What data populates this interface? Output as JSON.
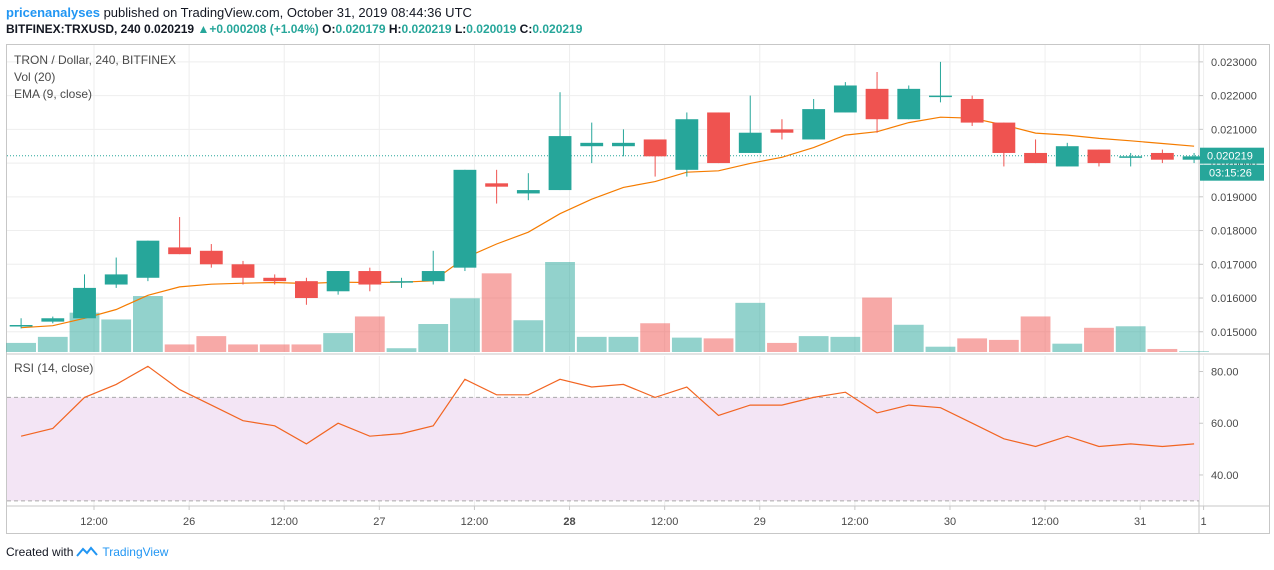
{
  "header": {
    "author": "pricenanalyses",
    "published_text": "published on TradingView.com, October 31, 2019 08:44:36 UTC",
    "symbol": "BITFINEX:TRXUSD, 240",
    "last_price": "0.020219",
    "change": "+0.000208 (+1.04%)",
    "o_label": "O:",
    "o_value": "0.020179",
    "h_label": "H:",
    "h_value": "0.020219",
    "l_label": "L:",
    "l_value": "0.020019",
    "c_label": "C:",
    "c_value": "0.020219"
  },
  "legend": {
    "title": "TRON / Dollar, 240, BITFINEX",
    "vol": "Vol (20)",
    "ema": "EMA (9, close)",
    "rsi": "RSI (14, close)"
  },
  "price_axis": {
    "ticks": [
      "0.023000",
      "0.022000",
      "0.021000",
      "0.020000",
      "0.019000",
      "0.018000",
      "0.017000",
      "0.016000",
      "0.015000"
    ],
    "current_price": "0.020219",
    "countdown": "03:15:26"
  },
  "rsi_axis": {
    "ticks": [
      "80.00",
      "60.00",
      "40.00"
    ]
  },
  "time_axis": {
    "labels": [
      {
        "text": "12:00",
        "i": 2.3
      },
      {
        "text": "26",
        "i": 5.3
      },
      {
        "text": "12:00",
        "i": 8.3
      },
      {
        "text": "27",
        "i": 11.3
      },
      {
        "text": "12:00",
        "i": 14.3
      },
      {
        "text": "28",
        "i": 17.3,
        "bold": true
      },
      {
        "text": "12:00",
        "i": 20.3
      },
      {
        "text": "29",
        "i": 23.3
      },
      {
        "text": "12:00",
        "i": 26.3
      },
      {
        "text": "30",
        "i": 29.3
      },
      {
        "text": "12:00",
        "i": 32.3
      },
      {
        "text": "31",
        "i": 35.3
      },
      {
        "text": "1",
        "i": 37.3
      }
    ]
  },
  "footer": {
    "created_with": "Created with",
    "brand": "TradingView"
  },
  "colors": {
    "up": "#26a69a",
    "down": "#ef5350",
    "ema": "#f57c00",
    "rsi": "#f26522",
    "rsi_band": "#f3e5f5"
  },
  "chart_data": {
    "type": "candlestick",
    "price_range": [
      0.0144,
      0.0235
    ],
    "candles": [
      {
        "o": 0.0152,
        "h": 0.0154,
        "l": 0.0151,
        "c": 0.0152
      },
      {
        "o": 0.0153,
        "h": 0.01545,
        "l": 0.01525,
        "c": 0.0154
      },
      {
        "o": 0.0154,
        "h": 0.0167,
        "l": 0.0154,
        "c": 0.0163
      },
      {
        "o": 0.0164,
        "h": 0.0172,
        "l": 0.0163,
        "c": 0.0167
      },
      {
        "o": 0.0166,
        "h": 0.0177,
        "l": 0.0165,
        "c": 0.0177
      },
      {
        "o": 0.0175,
        "h": 0.0184,
        "l": 0.0173,
        "c": 0.0173
      },
      {
        "o": 0.0174,
        "h": 0.0176,
        "l": 0.0169,
        "c": 0.017
      },
      {
        "o": 0.017,
        "h": 0.0171,
        "l": 0.0164,
        "c": 0.0166
      },
      {
        "o": 0.0166,
        "h": 0.0167,
        "l": 0.0164,
        "c": 0.0165
      },
      {
        "o": 0.0165,
        "h": 0.0166,
        "l": 0.0158,
        "c": 0.016
      },
      {
        "o": 0.0162,
        "h": 0.0168,
        "l": 0.0161,
        "c": 0.0168
      },
      {
        "o": 0.0168,
        "h": 0.0169,
        "l": 0.0162,
        "c": 0.0164
      },
      {
        "o": 0.0165,
        "h": 0.0166,
        "l": 0.0163,
        "c": 0.0165
      },
      {
        "o": 0.0165,
        "h": 0.0174,
        "l": 0.0164,
        "c": 0.0168
      },
      {
        "o": 0.0169,
        "h": 0.0198,
        "l": 0.0168,
        "c": 0.0198
      },
      {
        "o": 0.0194,
        "h": 0.0198,
        "l": 0.0188,
        "c": 0.0193
      },
      {
        "o": 0.0191,
        "h": 0.0197,
        "l": 0.0189,
        "c": 0.0192
      },
      {
        "o": 0.0192,
        "h": 0.0221,
        "l": 0.0192,
        "c": 0.0208
      },
      {
        "o": 0.0205,
        "h": 0.0212,
        "l": 0.02,
        "c": 0.0206
      },
      {
        "o": 0.0205,
        "h": 0.021,
        "l": 0.0202,
        "c": 0.0206
      },
      {
        "o": 0.0207,
        "h": 0.0207,
        "l": 0.0196,
        "c": 0.0202
      },
      {
        "o": 0.0198,
        "h": 0.0215,
        "l": 0.0196,
        "c": 0.0213
      },
      {
        "o": 0.0215,
        "h": 0.0215,
        "l": 0.02,
        "c": 0.02
      },
      {
        "o": 0.0203,
        "h": 0.022,
        "l": 0.0203,
        "c": 0.0209
      },
      {
        "o": 0.021,
        "h": 0.0213,
        "l": 0.0207,
        "c": 0.0209
      },
      {
        "o": 0.0207,
        "h": 0.0219,
        "l": 0.0207,
        "c": 0.0216
      },
      {
        "o": 0.0215,
        "h": 0.0224,
        "l": 0.0215,
        "c": 0.0223
      },
      {
        "o": 0.0222,
        "h": 0.0227,
        "l": 0.0209,
        "c": 0.0213
      },
      {
        "o": 0.0213,
        "h": 0.0223,
        "l": 0.0213,
        "c": 0.0222
      },
      {
        "o": 0.022,
        "h": 0.023,
        "l": 0.0218,
        "c": 0.022
      },
      {
        "o": 0.0219,
        "h": 0.022,
        "l": 0.0211,
        "c": 0.0212
      },
      {
        "o": 0.0212,
        "h": 0.0212,
        "l": 0.0199,
        "c": 0.0203
      },
      {
        "o": 0.0203,
        "h": 0.0207,
        "l": 0.02,
        "c": 0.02
      },
      {
        "o": 0.0199,
        "h": 0.0206,
        "l": 0.0199,
        "c": 0.0205
      },
      {
        "o": 0.0204,
        "h": 0.0204,
        "l": 0.0199,
        "c": 0.02
      },
      {
        "o": 0.0202,
        "h": 0.0203,
        "l": 0.0199,
        "c": 0.0202
      },
      {
        "o": 0.0203,
        "h": 0.0204,
        "l": 0.02,
        "c": 0.0201
      },
      {
        "o": 0.0201,
        "h": 0.0203,
        "l": 0.02,
        "c": 0.0202
      }
    ],
    "volume": [
      0.12,
      0.2,
      0.52,
      0.43,
      0.74,
      0.1,
      0.21,
      0.1,
      0.1,
      0.1,
      0.25,
      0.47,
      0.05,
      0.37,
      0.71,
      1.04,
      0.42,
      1.19,
      0.2,
      0.2,
      0.38,
      0.19,
      0.18,
      0.65,
      0.12,
      0.21,
      0.2,
      0.72,
      0.36,
      0.07,
      0.18,
      0.16,
      0.47,
      0.11,
      0.32,
      0.34,
      0.04,
      0.01
    ],
    "ema": [
      0.01512,
      0.01518,
      0.0154,
      0.01566,
      0.01608,
      0.01633,
      0.01641,
      0.01644,
      0.01646,
      0.01643,
      0.01647,
      0.01646,
      0.01647,
      0.01651,
      0.01719,
      0.0176,
      0.01795,
      0.0185,
      0.01893,
      0.01928,
      0.01945,
      0.01973,
      0.01977,
      0.01999,
      0.02017,
      0.02046,
      0.02083,
      0.02093,
      0.0212,
      0.02136,
      0.02133,
      0.02113,
      0.02089,
      0.02083,
      0.02073,
      0.02066,
      0.02058,
      0.0205
    ],
    "rsi": [
      55,
      58,
      70,
      75,
      82,
      73,
      67,
      61,
      59,
      52,
      60,
      55,
      56,
      59,
      77,
      71,
      71,
      77,
      74,
      75,
      70,
      74,
      63,
      67,
      67,
      70,
      72,
      64,
      67,
      66,
      60,
      54,
      51,
      55,
      51,
      52,
      51,
      52
    ],
    "rsi_range": [
      28,
      86
    ],
    "rsi_bands": [
      70,
      30
    ]
  }
}
